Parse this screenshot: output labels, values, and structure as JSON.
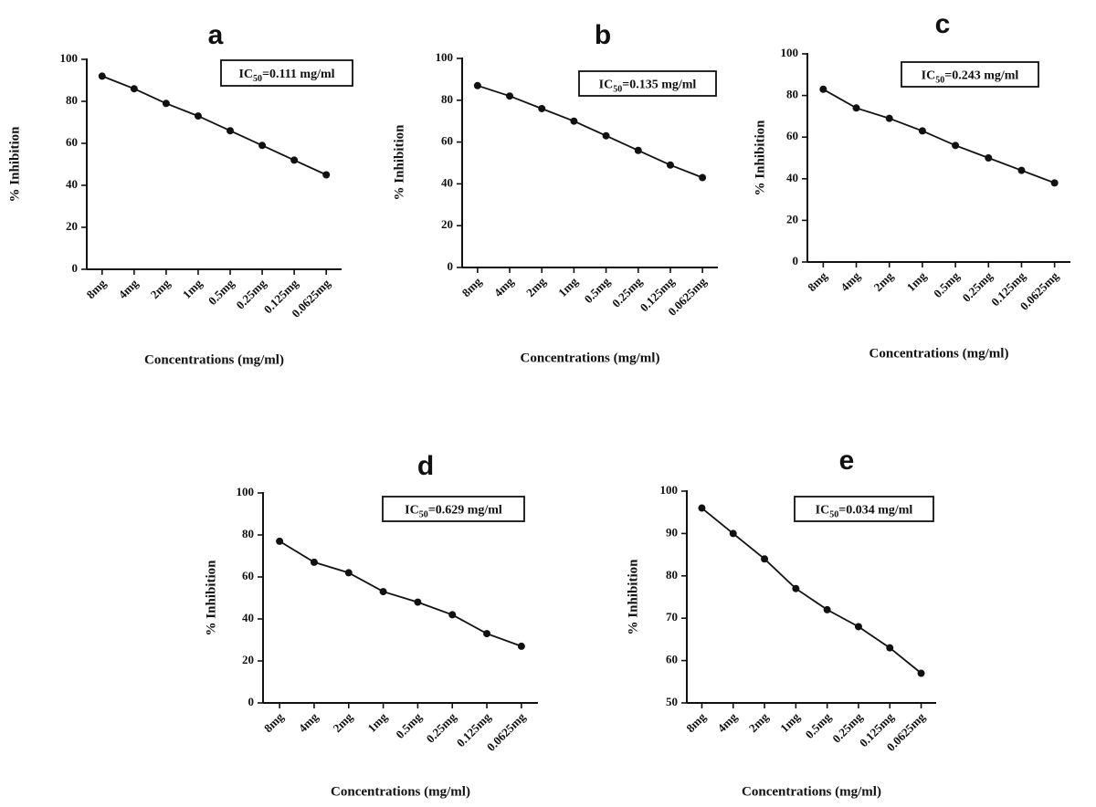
{
  "chart_data": [
    {
      "type": "line",
      "panel_label": "a",
      "annotation": {
        "prefix": "IC",
        "subscript": "50",
        "suffix": "=0.111 mg/ml"
      },
      "categories": [
        "8mg",
        "4mg",
        "2mg",
        "1mg",
        "0.5mg",
        "0.25mg",
        "0.125mg",
        "0.0625mg"
      ],
      "values": [
        92,
        86,
        79,
        73,
        66,
        59,
        52,
        45
      ],
      "xlabel": "Concentrations (mg/ml)",
      "ylabel": "% Inhibition",
      "ylim": [
        0,
        100
      ],
      "yticks": [
        0,
        20,
        40,
        60,
        80,
        100
      ],
      "grid": false
    },
    {
      "type": "line",
      "panel_label": "b",
      "annotation": {
        "prefix": "IC",
        "subscript": "50",
        "suffix": "=0.135 mg/ml"
      },
      "categories": [
        "8mg",
        "4mg",
        "2mg",
        "1mg",
        "0.5mg",
        "0.25mg",
        "0.125mg",
        "0.0625mg"
      ],
      "values": [
        87,
        82,
        76,
        70,
        63,
        56,
        49,
        43
      ],
      "xlabel": "Concentrations (mg/ml)",
      "ylabel": "% Inhibition",
      "ylim": [
        0,
        100
      ],
      "yticks": [
        0,
        20,
        40,
        60,
        80,
        100
      ],
      "grid": false
    },
    {
      "type": "line",
      "panel_label": "c",
      "annotation": {
        "prefix": "IC",
        "subscript": "50",
        "suffix": "=0.243 mg/ml"
      },
      "categories": [
        "8mg",
        "4mg",
        "2mg",
        "1mg",
        "0.5mg",
        "0.25mg",
        "0.125mg",
        "0.0625mg"
      ],
      "values": [
        83,
        74,
        69,
        63,
        56,
        50,
        44,
        38
      ],
      "xlabel": "Concentrations (mg/ml)",
      "ylabel": "% Inhibition",
      "ylim": [
        0,
        100
      ],
      "yticks": [
        0,
        20,
        40,
        60,
        80,
        100
      ],
      "grid": false
    },
    {
      "type": "line",
      "panel_label": "d",
      "annotation": {
        "prefix": "IC",
        "subscript": "50",
        "suffix": "=0.629 mg/ml"
      },
      "categories": [
        "8mg",
        "4mg",
        "2mg",
        "1mg",
        "0.5mg",
        "0.25mg",
        "0.125mg",
        "0.0625mg"
      ],
      "values": [
        77,
        67,
        62,
        53,
        48,
        42,
        33,
        27
      ],
      "xlabel": "Concentrations (mg/ml)",
      "ylabel": "% Inhibition",
      "ylim": [
        0,
        100
      ],
      "yticks": [
        0,
        20,
        40,
        60,
        80,
        100
      ],
      "grid": false
    },
    {
      "type": "line",
      "panel_label": "e",
      "annotation": {
        "prefix": "IC",
        "subscript": "50",
        "suffix": "=0.034 mg/ml"
      },
      "categories": [
        "8mg",
        "4mg",
        "2mg",
        "1mg",
        "0.5mg",
        "0.25mg",
        "0.125mg",
        "0.0625mg"
      ],
      "values": [
        96,
        90,
        84,
        77,
        72,
        68,
        63,
        57
      ],
      "xlabel": "Concentrations (mg/ml)",
      "ylabel": "% Inhibition",
      "ylim": [
        50,
        100
      ],
      "yticks": [
        50,
        60,
        70,
        80,
        90,
        100
      ],
      "grid": false
    }
  ]
}
